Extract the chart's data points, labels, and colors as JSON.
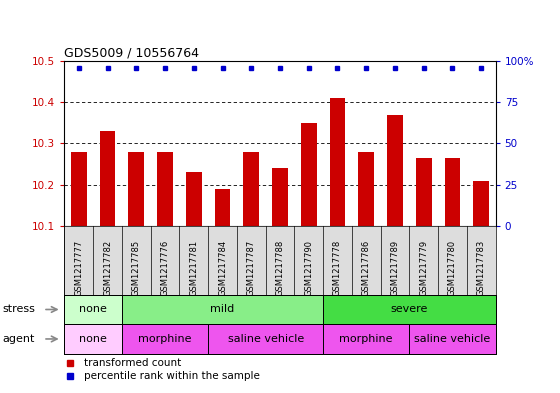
{
  "title": "GDS5009 / 10556764",
  "samples": [
    "GSM1217777",
    "GSM1217782",
    "GSM1217785",
    "GSM1217776",
    "GSM1217781",
    "GSM1217784",
    "GSM1217787",
    "GSM1217788",
    "GSM1217790",
    "GSM1217778",
    "GSM1217786",
    "GSM1217789",
    "GSM1217779",
    "GSM1217780",
    "GSM1217783"
  ],
  "values": [
    10.28,
    10.33,
    10.28,
    10.28,
    10.23,
    10.19,
    10.28,
    10.24,
    10.35,
    10.41,
    10.28,
    10.37,
    10.265,
    10.265,
    10.21
  ],
  "ymin": 10.1,
  "ymax": 10.5,
  "yticks": [
    10.1,
    10.2,
    10.3,
    10.4,
    10.5
  ],
  "bar_color": "#cc0000",
  "dot_color": "#0000cc",
  "bar_width": 0.55,
  "stress_groups": [
    {
      "label": "none",
      "start": 0,
      "end": 2,
      "color": "#ccffcc"
    },
    {
      "label": "mild",
      "start": 2,
      "end": 9,
      "color": "#88ee88"
    },
    {
      "label": "severe",
      "start": 9,
      "end": 15,
      "color": "#44dd44"
    }
  ],
  "agent_groups": [
    {
      "label": "none",
      "start": 0,
      "end": 2,
      "color": "#ffccff"
    },
    {
      "label": "morphine",
      "start": 2,
      "end": 5,
      "color": "#ee55ee"
    },
    {
      "label": "saline vehicle",
      "start": 5,
      "end": 9,
      "color": "#ee55ee"
    },
    {
      "label": "morphine",
      "start": 9,
      "end": 12,
      "color": "#ee55ee"
    },
    {
      "label": "saline vehicle",
      "start": 12,
      "end": 15,
      "color": "#ee55ee"
    }
  ],
  "bg_color": "#ffffff",
  "tick_label_color_left": "#cc0000",
  "tick_label_color_right": "#0000cc",
  "right_yticks": [
    0,
    25,
    50,
    75,
    100
  ],
  "right_yticklabels": [
    "0",
    "25",
    "50",
    "75",
    "100%"
  ],
  "xlabel_bg": "#dddddd"
}
